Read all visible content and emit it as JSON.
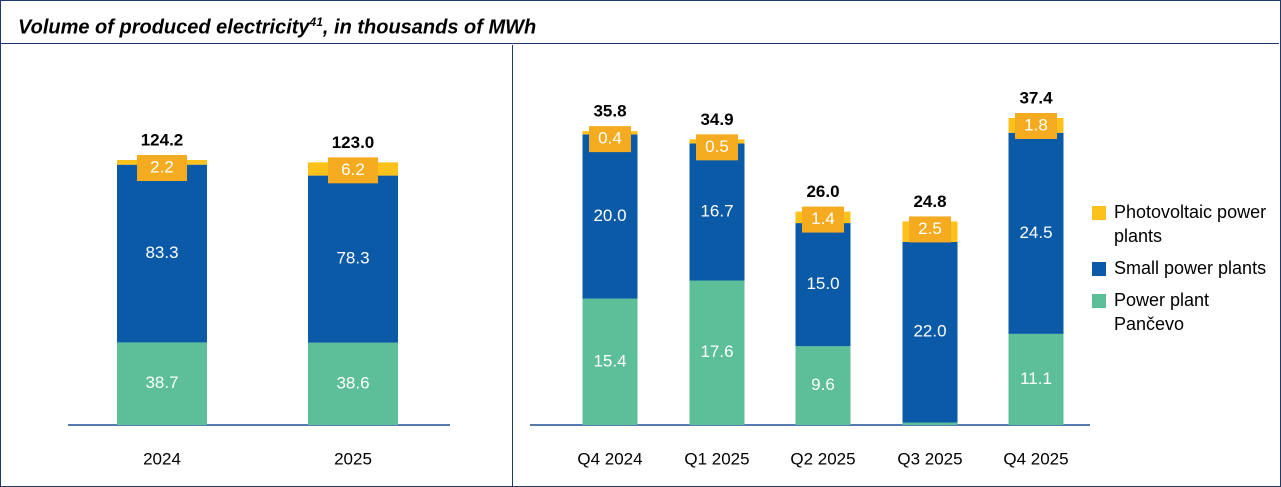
{
  "title": "Volume of produced electricity",
  "title_superscript": "41",
  "title_suffix": ", in thousands of MWh",
  "chart_data": [
    {
      "type": "stacked_bar",
      "categories": [
        "2024",
        "2025"
      ],
      "series": [
        {
          "color": "#5cbf98",
          "values": [
            38.7,
            38.6
          ]
        },
        {
          "color": "#0b5aa8",
          "values": [
            83.3,
            78.3
          ]
        },
        {
          "color": "#fcc21b",
          "values": [
            2.2,
            6.2
          ]
        }
      ],
      "totals": [
        124.2,
        123.0
      ],
      "total_labels": [
        "124.2",
        "123.0"
      ]
    },
    {
      "type": "stacked_bar",
      "categories": [
        "Q4 2024",
        "Q1 2025",
        "Q2 2025",
        "Q3 2025",
        "Q4 2025"
      ],
      "series": [
        {
          "name": "Power plant Pančevo",
          "color": "#5cbf98",
          "values": [
            15.4,
            17.6,
            9.6,
            0.3,
            11.1
          ]
        },
        {
          "name": "Small power plants",
          "color": "#0b5aa8",
          "values": [
            20.0,
            16.7,
            15.0,
            22.0,
            24.5
          ],
          "value_labels": [
            "20.0",
            "16.7",
            "15.0",
            "22.0",
            "24.5"
          ]
        },
        {
          "name": "Photovoltaic power plants",
          "color": "#fcc21b",
          "values": [
            0.4,
            0.5,
            1.4,
            2.5,
            1.8
          ]
        }
      ],
      "totals": [
        35.8,
        34.9,
        26.0,
        24.8,
        37.4
      ],
      "total_labels": [
        "35.8",
        "34.9",
        "26.0",
        "24.8",
        "37.4"
      ],
      "legend": "right"
    }
  ]
}
